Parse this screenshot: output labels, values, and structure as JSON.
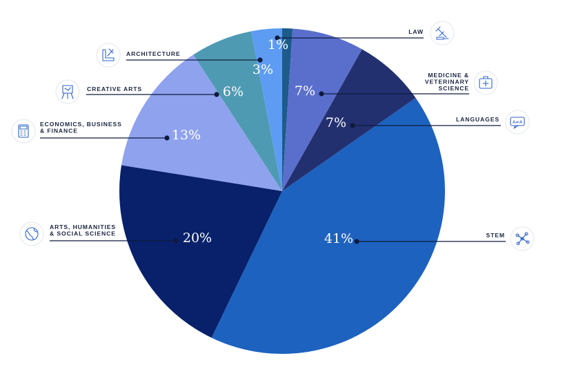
{
  "chart_data": {
    "type": "pie",
    "start_angle_deg": 0,
    "direction": "clockwise",
    "slices": [
      {
        "label": "LAW",
        "value": 1,
        "display": "1%",
        "color": "#1d5b8a",
        "icon": "gavel-icon"
      },
      {
        "label": "MEDICINE & VETERINARY SCIENCE",
        "value": 7,
        "display": "7%",
        "color": "#5a6fcc",
        "icon": "medical-kit-icon"
      },
      {
        "label": "LANGUAGES",
        "value": 7,
        "display": "7%",
        "color": "#233070",
        "icon": "translate-icon"
      },
      {
        "label": "STEM",
        "value": 41,
        "display": "41%",
        "color": "#1d62be",
        "icon": "molecule-icon"
      },
      {
        "label": "ARTS, HUMANITIES & SOCIAL SCIENCE",
        "value": 20,
        "display": "20%",
        "color": "#08216a",
        "icon": "globe-icon"
      },
      {
        "label": "ECONOMICS, BUSINESS & FINANCE",
        "value": 13,
        "display": "13%",
        "color": "#8fa2ee",
        "icon": "calculator-icon"
      },
      {
        "label": "CREATIVE ARTS",
        "value": 6,
        "display": "6%",
        "color": "#4f9ab3",
        "icon": "easel-icon"
      },
      {
        "label": "ARCHITECTURE",
        "value": 3,
        "display": "3%",
        "color": "#5e9cf3",
        "icon": "drafting-tools-icon"
      }
    ],
    "legend": "none",
    "labels": "callouts"
  }
}
